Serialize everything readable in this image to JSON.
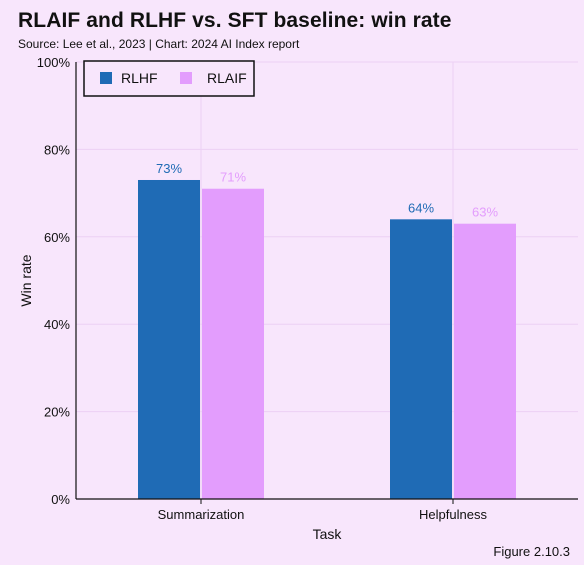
{
  "header": {
    "title": "RLAIF and RLHF vs. SFT baseline: win rate",
    "subtitle": "Source: Lee et al., 2023 | Chart: 2024 AI Index report"
  },
  "footer": {
    "figure_label": "Figure 2.10.3"
  },
  "colors": {
    "background": "#f8e6fc",
    "rlhf": "#1f6bb5",
    "rlaif": "#e39dfd",
    "grid": "#ecd0f4"
  },
  "chart_data": {
    "type": "bar",
    "xlabel": "Task",
    "ylabel": "Win rate",
    "categories": [
      "Summarization",
      "Helpfulness"
    ],
    "series": [
      {
        "name": "RLHF",
        "values": [
          73,
          64
        ],
        "color": "#1f6bb5",
        "labels": [
          "73%",
          "64%"
        ]
      },
      {
        "name": "RLAIF",
        "values": [
          71,
          63
        ],
        "color": "#e39dfd",
        "labels": [
          "71%",
          "63%"
        ]
      }
    ],
    "ylim": [
      0,
      100
    ],
    "yticks": [
      0,
      20,
      40,
      60,
      80,
      100
    ],
    "ytick_labels": [
      "0%",
      "20%",
      "40%",
      "60%",
      "80%",
      "100%"
    ],
    "grid": true,
    "legend_position": "top-left"
  }
}
